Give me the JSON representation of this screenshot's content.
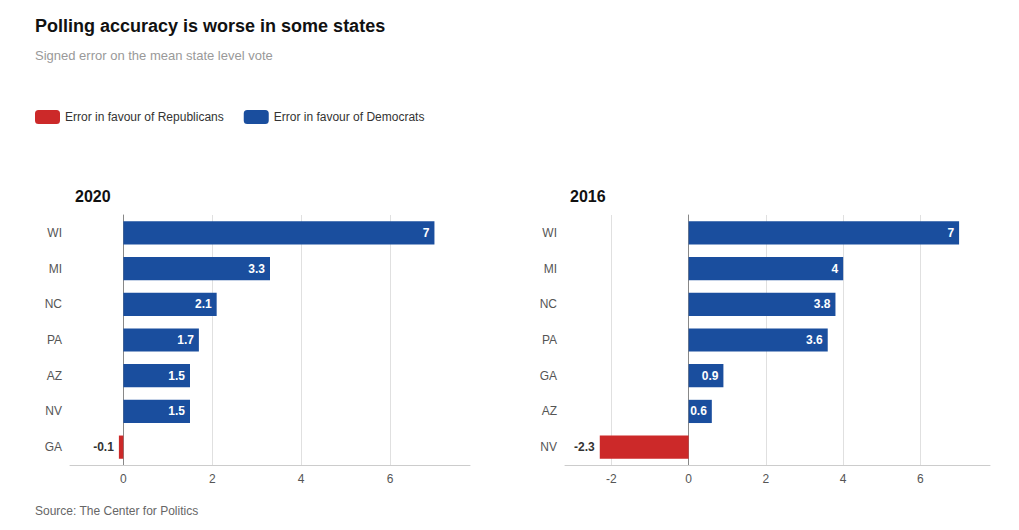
{
  "title": "Polling accuracy is worse in some states",
  "subtitle": "Signed error on the mean state level vote",
  "annotations": [
    "Source: The Center for Politics"
  ],
  "legend": "top-left",
  "chart_data": [
    {
      "type": "bar",
      "orientation": "horizontal",
      "title": "2020",
      "categories": [
        "WI",
        "MI",
        "NC",
        "PA",
        "AZ",
        "NV",
        "GA"
      ],
      "series": [
        {
          "name": "Error in favour of Republicans",
          "color": "#cc2929",
          "values": [
            null,
            null,
            null,
            null,
            null,
            null,
            -0.1
          ]
        },
        {
          "name": "Error in favour of Democrats",
          "color": "#1a4e9e",
          "values": [
            7,
            3.3,
            2.1,
            1.7,
            1.5,
            1.5,
            null
          ]
        }
      ],
      "xlim": [
        -1.2,
        7.8
      ],
      "xticks": [
        0,
        2,
        4,
        6
      ],
      "grid": true,
      "data_labels": true
    },
    {
      "type": "bar",
      "orientation": "horizontal",
      "title": "2016",
      "categories": [
        "WI",
        "MI",
        "NC",
        "PA",
        "GA",
        "AZ",
        "NV"
      ],
      "series": [
        {
          "name": "Error in favour of Republicans",
          "color": "#cc2929",
          "values": [
            null,
            null,
            null,
            null,
            null,
            null,
            -2.3
          ]
        },
        {
          "name": "Error in favour of Democrats",
          "color": "#1a4e9e",
          "values": [
            7,
            4,
            3.8,
            3.6,
            0.9,
            0.6,
            null
          ]
        }
      ],
      "xlim": [
        -3.2,
        7.8
      ],
      "xticks": [
        -2,
        0,
        2,
        4,
        6
      ],
      "grid": true,
      "data_labels": true
    }
  ]
}
